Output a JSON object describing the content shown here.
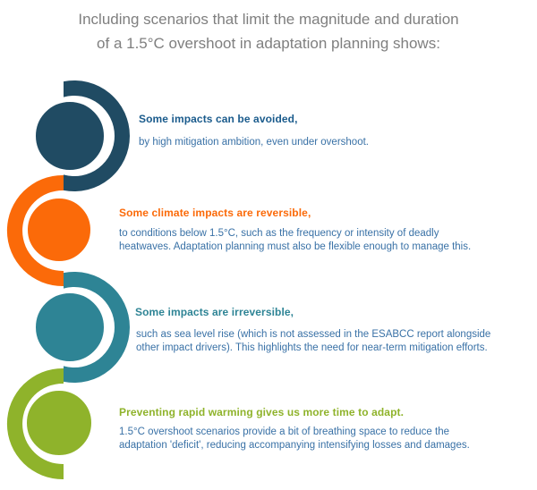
{
  "title": {
    "lines": [
      "Including scenarios that limit the magnitude and duration",
      "of a 1.5°C overshoot in adaptation planning shows:"
    ],
    "color": "#7f7f7f"
  },
  "body_text_color": "#3971a6",
  "items": [
    {
      "color": "#204b63",
      "heading_color": "#1a5b8c",
      "heading": "Some impacts can be avoided,",
      "body_lines": [
        "by high mitigation ambition, even under overshoot."
      ]
    },
    {
      "color": "#fb6a09",
      "heading_color": "#fb6a09",
      "heading": "Some climate impacts are reversible,",
      "body_lines": [
        "to conditions below 1.5°C, such as the frequency or intensity of deadly",
        "heatwaves. Adaptation planning must also be flexible enough to manage this."
      ]
    },
    {
      "color": "#2e8495",
      "heading_color": "#2e8495",
      "heading": "Some impacts are irreversible,",
      "body_lines": [
        "such as sea level rise (which is not assessed in the ESABCC report alongside",
        "other impact drivers). This highlights the need for near-term mitigation efforts."
      ]
    },
    {
      "color": "#8fb32b",
      "heading_color": "#8fb32b",
      "heading": "Preventing rapid warming gives us more time to adapt.",
      "body_lines": [
        "1.5°C overshoot scenarios provide a bit of breathing space to reduce the",
        "adaptation 'deficit', reducing accompanying intensifying losses and damages."
      ]
    }
  ]
}
